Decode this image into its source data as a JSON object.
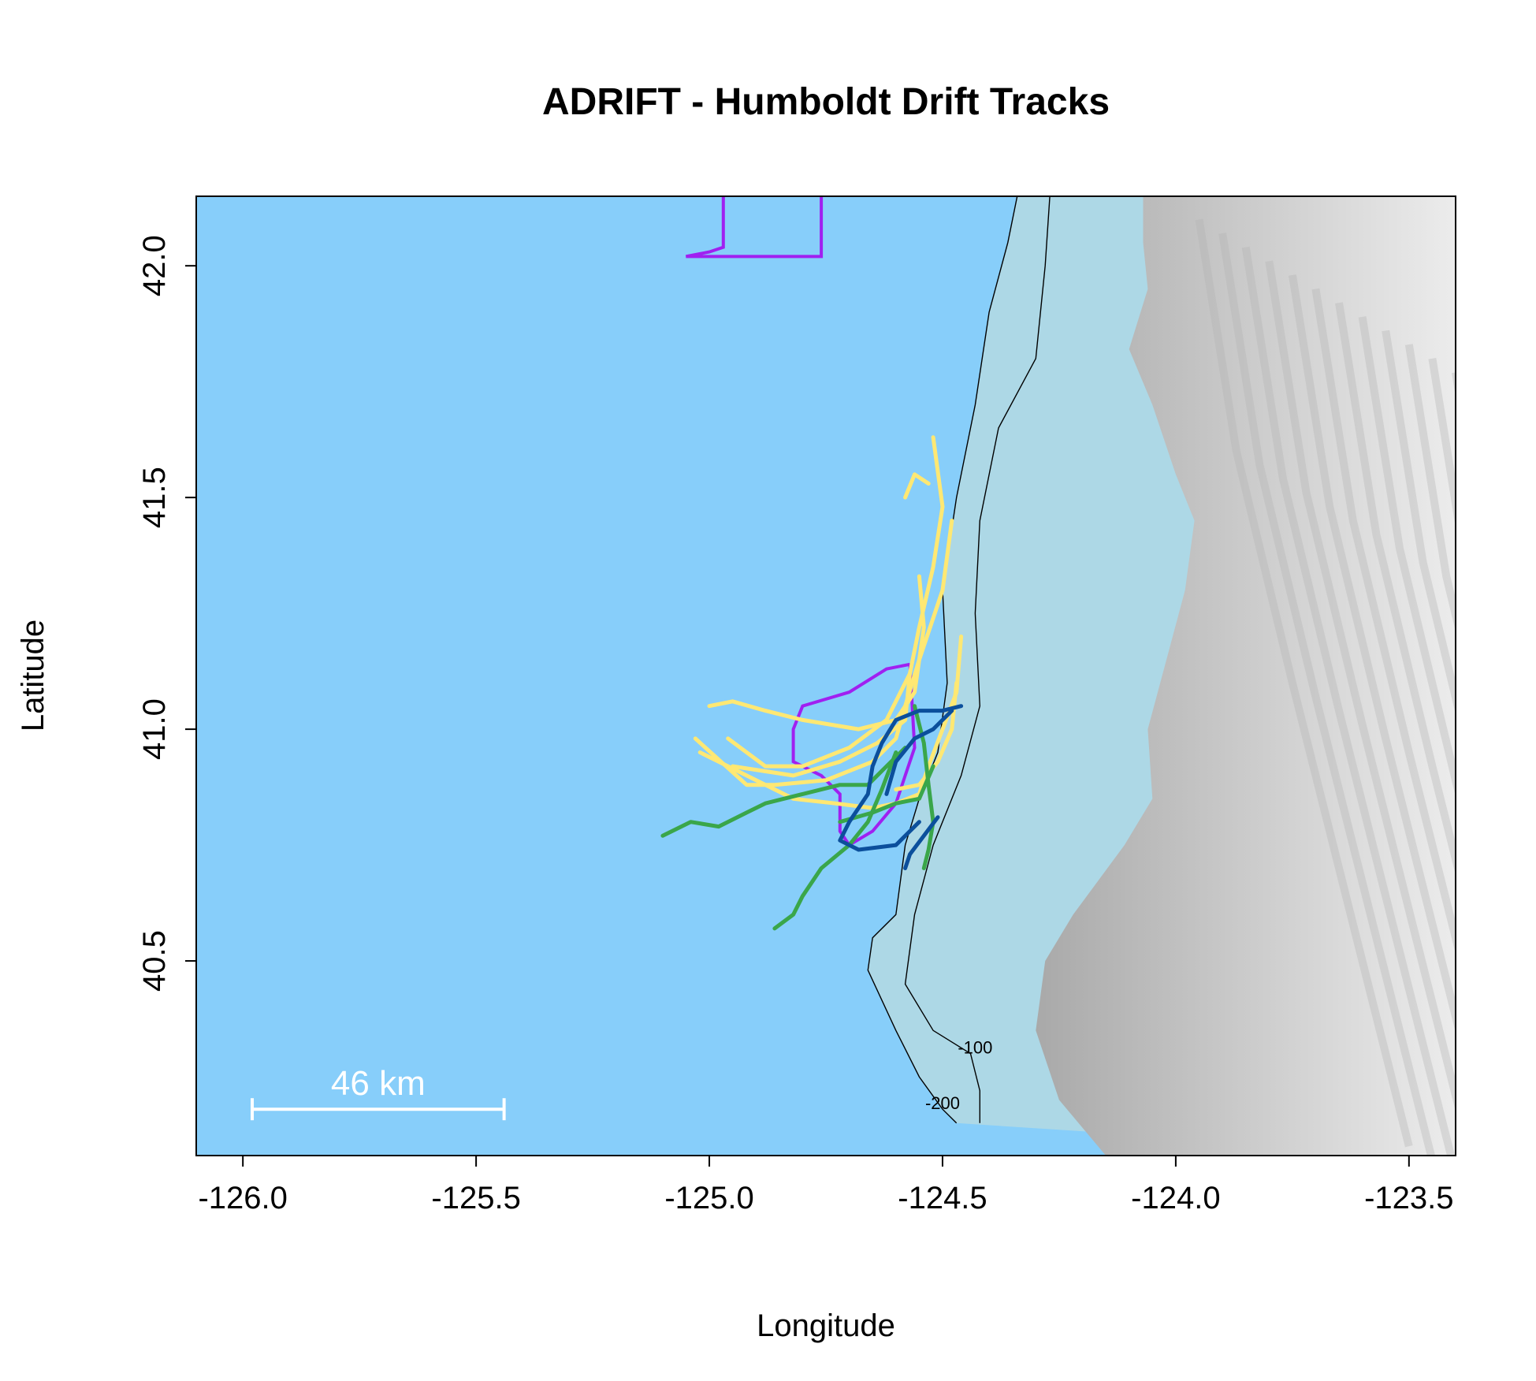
{
  "title": "ADRIFT - Humboldt Drift Tracks",
  "xlabel": "Longitude",
  "ylabel": "Latitude",
  "x_ticks": [
    "-126.0",
    "-125.5",
    "-125.0",
    "-124.5",
    "-124.0",
    "-123.5"
  ],
  "y_ticks": [
    "40.5",
    "41.0",
    "41.5",
    "42.0"
  ],
  "xlim": [
    -126.1,
    -123.4
  ],
  "ylim": [
    40.08,
    42.15
  ],
  "scale_bar": {
    "label": "46 km",
    "lon_start": -125.98,
    "lon_end": -125.44,
    "lat": 40.18
  },
  "contour_labels": [
    {
      "text": "-100",
      "lon": -124.43,
      "lat": 40.3
    },
    {
      "text": "-200",
      "lon": -124.5,
      "lat": 40.18
    }
  ],
  "colors": {
    "ocean": "#87cefa",
    "shelf": "#add8e6",
    "land_dark": "#a9a9a9",
    "land_light": "#ececec",
    "contour": "#000000",
    "boundary": "#a020f0",
    "track_yellow": "#ffe873",
    "track_green": "#3aa64a",
    "track_blue": "#0b4f9c"
  },
  "legend": null,
  "chart_data": {
    "type": "map",
    "title": "ADRIFT - Humboldt Drift Tracks",
    "xlabel": "Longitude",
    "ylabel": "Latitude",
    "xlim": [
      -126.1,
      -123.4
    ],
    "ylim": [
      40.08,
      42.15
    ],
    "coastline": [
      [
        -124.34,
        42.15
      ],
      [
        -124.36,
        42.05
      ],
      [
        -124.42,
        41.9
      ],
      [
        -124.42,
        41.7
      ],
      [
        -124.45,
        41.6
      ],
      [
        -124.46,
        41.4
      ],
      [
        -124.48,
        41.2
      ],
      [
        -124.48,
        41.0
      ],
      [
        -124.5,
        40.9
      ],
      [
        -124.53,
        40.8
      ],
      [
        -124.54,
        40.7
      ],
      [
        -124.52,
        40.6
      ],
      [
        -124.55,
        40.5
      ],
      [
        -124.5,
        40.4
      ],
      [
        -124.45,
        40.3
      ],
      [
        -124.4,
        40.2
      ],
      [
        -124.33,
        40.08
      ]
    ],
    "contour_100": [
      [
        -124.27,
        42.15
      ],
      [
        -124.28,
        42.0
      ],
      [
        -124.3,
        41.8
      ],
      [
        -124.38,
        41.65
      ],
      [
        -124.42,
        41.45
      ],
      [
        -124.43,
        41.25
      ],
      [
        -124.42,
        41.05
      ],
      [
        -124.46,
        40.9
      ],
      [
        -124.52,
        40.75
      ],
      [
        -124.56,
        40.6
      ],
      [
        -124.58,
        40.45
      ],
      [
        -124.52,
        40.35
      ],
      [
        -124.44,
        40.3
      ],
      [
        -124.42,
        40.22
      ],
      [
        -124.42,
        40.15
      ]
    ],
    "contour_200": [
      [
        -124.34,
        42.15
      ],
      [
        -124.36,
        42.05
      ],
      [
        -124.4,
        41.9
      ],
      [
        -124.43,
        41.7
      ],
      [
        -124.47,
        41.5
      ],
      [
        -124.5,
        41.3
      ],
      [
        -124.49,
        41.1
      ],
      [
        -124.51,
        40.95
      ],
      [
        -124.55,
        40.85
      ],
      [
        -124.58,
        40.75
      ],
      [
        -124.6,
        40.6
      ],
      [
        -124.65,
        40.55
      ],
      [
        -124.66,
        40.48
      ],
      [
        -124.6,
        40.35
      ],
      [
        -124.55,
        40.25
      ],
      [
        -124.5,
        40.18
      ],
      [
        -124.47,
        40.15
      ]
    ],
    "boundaries": [
      {
        "name": "",
        "points": [
          [
            -124.97,
            42.15
          ],
          [
            -124.97,
            42.04
          ],
          [
            -125.0,
            42.03
          ],
          [
            -125.05,
            42.02
          ],
          [
            -124.76,
            42.02
          ],
          [
            -124.76,
            42.15
          ]
        ]
      },
      {
        "name": "",
        "points": [
          [
            -124.57,
            41.14
          ],
          [
            -124.62,
            41.13
          ],
          [
            -124.7,
            41.08
          ],
          [
            -124.8,
            41.05
          ],
          [
            -124.82,
            41.0
          ],
          [
            -124.82,
            40.93
          ],
          [
            -124.76,
            40.9
          ],
          [
            -124.72,
            40.86
          ],
          [
            -124.72,
            40.78
          ],
          [
            -124.7,
            40.75
          ],
          [
            -124.65,
            40.78
          ],
          [
            -124.6,
            40.84
          ],
          [
            -124.58,
            40.9
          ],
          [
            -124.56,
            40.96
          ],
          [
            -124.57,
            41.14
          ]
        ]
      }
    ],
    "series": [
      {
        "color": "yellow",
        "tracks": [
          [
            [
              -124.53,
              41.53
            ],
            [
              -124.56,
              41.55
            ],
            [
              -124.58,
              41.5
            ]
          ],
          [
            [
              -124.52,
              41.63
            ],
            [
              -124.5,
              41.48
            ],
            [
              -124.52,
              41.35
            ],
            [
              -124.55,
              41.22
            ],
            [
              -124.57,
              41.12
            ],
            [
              -124.62,
              41.02
            ],
            [
              -124.7,
              40.96
            ],
            [
              -124.8,
              40.92
            ],
            [
              -124.88,
              40.92
            ],
            [
              -124.96,
              40.98
            ]
          ],
          [
            [
              -124.48,
              41.45
            ],
            [
              -124.5,
              41.3
            ],
            [
              -124.55,
              41.15
            ],
            [
              -124.58,
              41.05
            ],
            [
              -124.6,
              40.98
            ],
            [
              -124.65,
              40.93
            ],
            [
              -124.75,
              40.89
            ],
            [
              -124.86,
              40.88
            ],
            [
              -124.92,
              40.88
            ],
            [
              -125.03,
              40.98
            ]
          ],
          [
            [
              -124.55,
              41.33
            ],
            [
              -124.54,
              41.22
            ],
            [
              -124.56,
              41.08
            ],
            [
              -124.6,
              41.02
            ],
            [
              -124.68,
              41.0
            ],
            [
              -124.8,
              41.02
            ],
            [
              -124.88,
              41.04
            ],
            [
              -124.95,
              41.06
            ],
            [
              -125.0,
              41.05
            ]
          ],
          [
            [
              -124.46,
              41.2
            ],
            [
              -124.47,
              41.08
            ],
            [
              -124.5,
              41.0
            ],
            [
              -124.53,
              40.92
            ],
            [
              -124.55,
              40.86
            ],
            [
              -124.6,
              40.84
            ],
            [
              -124.65,
              40.83
            ],
            [
              -124.73,
              40.84
            ],
            [
              -124.82,
              40.85
            ],
            [
              -124.92,
              40.9
            ],
            [
              -125.02,
              40.95
            ]
          ],
          [
            [
              -124.47,
              41.1
            ],
            [
              -124.48,
              41.0
            ],
            [
              -124.51,
              40.93
            ],
            [
              -124.55,
              40.88
            ],
            [
              -124.6,
              40.87
            ]
          ],
          [
            [
              -124.57,
              41.12
            ],
            [
              -124.58,
              41.02
            ],
            [
              -124.64,
              40.97
            ],
            [
              -124.72,
              40.93
            ],
            [
              -124.82,
              40.9
            ],
            [
              -124.95,
              40.92
            ]
          ]
        ]
      },
      {
        "color": "green",
        "tracks": [
          [
            [
              -124.58,
              40.96
            ],
            [
              -124.62,
              40.92
            ],
            [
              -124.66,
              40.88
            ],
            [
              -124.72,
              40.88
            ],
            [
              -124.8,
              40.86
            ],
            [
              -124.88,
              40.84
            ],
            [
              -124.92,
              40.82
            ],
            [
              -124.98,
              40.79
            ],
            [
              -125.04,
              40.8
            ],
            [
              -125.1,
              40.77
            ]
          ],
          [
            [
              -124.6,
              40.95
            ],
            [
              -124.63,
              40.87
            ],
            [
              -124.66,
              40.8
            ],
            [
              -124.7,
              40.75
            ],
            [
              -124.76,
              40.7
            ],
            [
              -124.8,
              40.64
            ],
            [
              -124.82,
              40.6
            ],
            [
              -124.86,
              40.57
            ]
          ],
          [
            [
              -124.52,
              40.92
            ],
            [
              -124.55,
              40.85
            ],
            [
              -124.6,
              40.84
            ],
            [
              -124.65,
              40.82
            ],
            [
              -124.72,
              40.8
            ]
          ],
          [
            [
              -124.56,
              41.05
            ],
            [
              -124.54,
              40.97
            ],
            [
              -124.53,
              40.88
            ],
            [
              -124.52,
              40.8
            ],
            [
              -124.53,
              40.74
            ],
            [
              -124.54,
              40.7
            ]
          ]
        ]
      },
      {
        "color": "blue",
        "tracks": [
          [
            [
              -124.46,
              41.05
            ],
            [
              -124.5,
              41.04
            ],
            [
              -124.55,
              41.04
            ],
            [
              -124.6,
              41.02
            ],
            [
              -124.63,
              40.97
            ],
            [
              -124.65,
              40.92
            ],
            [
              -124.66,
              40.86
            ],
            [
              -124.7,
              40.8
            ],
            [
              -124.72,
              40.76
            ],
            [
              -124.68,
              40.74
            ],
            [
              -124.6,
              40.75
            ],
            [
              -124.57,
              40.78
            ],
            [
              -124.55,
              40.8
            ]
          ],
          [
            [
              -124.51,
              40.81
            ],
            [
              -124.54,
              40.77
            ],
            [
              -124.57,
              40.73
            ],
            [
              -124.58,
              40.7
            ]
          ],
          [
            [
              -124.48,
              41.04
            ],
            [
              -124.52,
              41.0
            ],
            [
              -124.56,
              40.98
            ],
            [
              -124.6,
              40.93
            ],
            [
              -124.62,
              40.86
            ]
          ]
        ]
      }
    ]
  }
}
